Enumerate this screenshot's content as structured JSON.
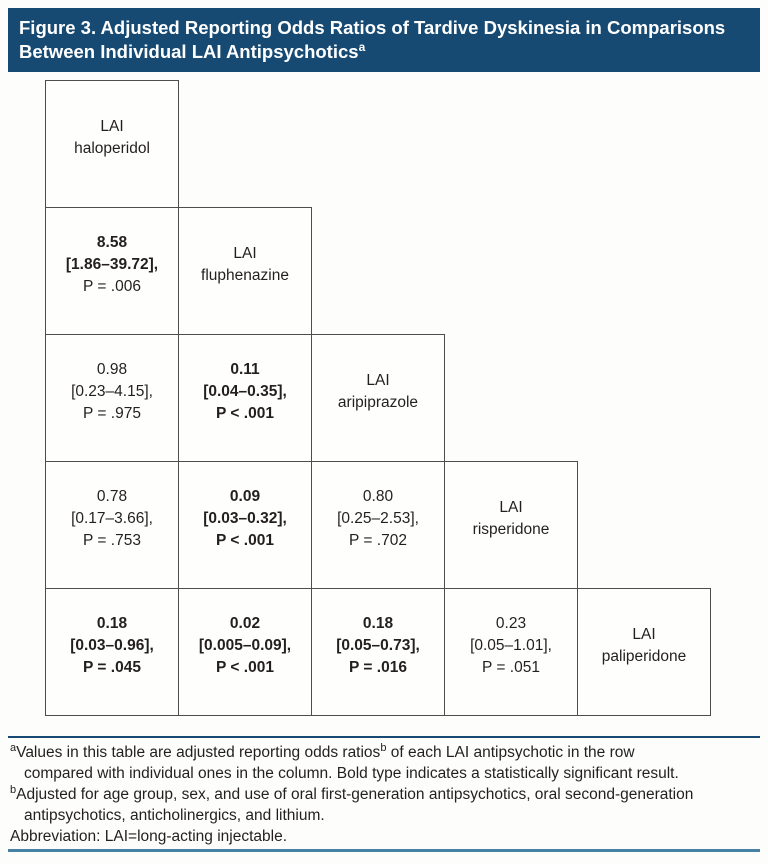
{
  "title": {
    "line1": "Figure 3. Adjusted Reporting Odds Ratios of Tardive Dyskinesia in Comparisons",
    "line2": "Between Individual LAI Antipsychotics",
    "sup": "a"
  },
  "colors": {
    "header_bg": "#164a73",
    "top_rule": "#164a73",
    "bottom_rule": "#4682a6",
    "cell_border": "#4d4d4d",
    "text": "#231f20"
  },
  "matrix": {
    "rows": [
      {
        "cells": [
          {
            "type": "diagonal",
            "line1": "LAI",
            "line2": "haloperidol"
          }
        ]
      },
      {
        "cells": [
          {
            "type": "value",
            "value": "8.58",
            "ci": "[1.86–39.72],",
            "p": "P = .006",
            "bold_value": true,
            "bold_ci": true,
            "bold_p": false
          },
          {
            "type": "diagonal",
            "line1": "LAI",
            "line2": "fluphenazine"
          }
        ]
      },
      {
        "cells": [
          {
            "type": "value",
            "value": "0.98",
            "ci": "[0.23–4.15],",
            "p": "P = .975",
            "bold_value": false,
            "bold_ci": false,
            "bold_p": false
          },
          {
            "type": "value",
            "value": "0.11",
            "ci": "[0.04–0.35],",
            "p": "P < .001",
            "bold_value": true,
            "bold_ci": true,
            "bold_p": true
          },
          {
            "type": "diagonal",
            "line1": "LAI",
            "line2": "aripiprazole"
          }
        ]
      },
      {
        "cells": [
          {
            "type": "value",
            "value": "0.78",
            "ci": "[0.17–3.66],",
            "p": "P = .753",
            "bold_value": false,
            "bold_ci": false,
            "bold_p": false
          },
          {
            "type": "value",
            "value": "0.09",
            "ci": "[0.03–0.32],",
            "p": "P < .001",
            "bold_value": true,
            "bold_ci": true,
            "bold_p": true
          },
          {
            "type": "value",
            "value": "0.80",
            "ci": "[0.25–2.53],",
            "p": "P = .702",
            "bold_value": false,
            "bold_ci": false,
            "bold_p": false
          },
          {
            "type": "diagonal",
            "line1": "LAI",
            "line2": "risperidone"
          }
        ]
      },
      {
        "cells": [
          {
            "type": "value",
            "value": "0.18",
            "ci": "[0.03–0.96],",
            "p": "P = .045",
            "bold_value": true,
            "bold_ci": true,
            "bold_p": true
          },
          {
            "type": "value",
            "value": "0.02",
            "ci": "[0.005–0.09],",
            "p": "P < .001",
            "bold_value": true,
            "bold_ci": true,
            "bold_p": true
          },
          {
            "type": "value",
            "value": "0.18",
            "ci": "[0.05–0.73],",
            "p": "P = .016",
            "bold_value": true,
            "bold_ci": true,
            "bold_p": true
          },
          {
            "type": "value",
            "value": "0.23",
            "ci": "[0.05–1.01],",
            "p": "P = .051",
            "bold_value": false,
            "bold_ci": false,
            "bold_p": false
          },
          {
            "type": "diagonal",
            "line1": "LAI",
            "line2": "paliperidone"
          }
        ]
      }
    ]
  },
  "footnotes": {
    "a_sup": "a",
    "a_line1_pre": "Values in this table are adjusted reporting odds ratios",
    "a_line1_sup": "b",
    "a_line1_post": " of each LAI antipsychotic in the row",
    "a_line2": "compared with individual ones in the column. Bold type indicates a statistically significant result.",
    "b_sup": "b",
    "b_line1": "Adjusted for age group, sex, and use of oral first-generation antipsychotics, oral second-generation",
    "b_line2": "antipsychotics, anticholinergics, and lithium.",
    "abbreviation": "Abbreviation: LAI=long-acting injectable."
  }
}
